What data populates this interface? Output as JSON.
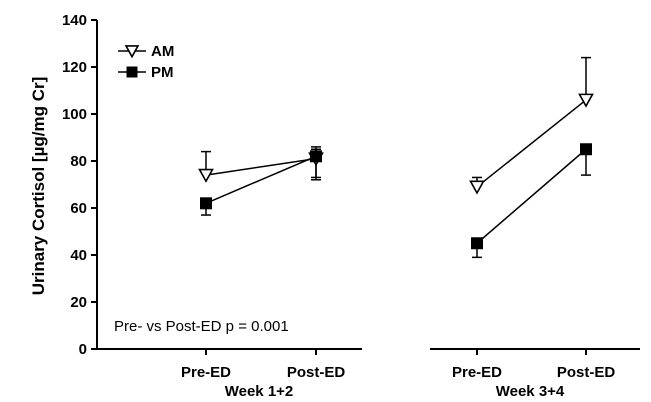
{
  "chart_data": {
    "type": "line",
    "ylabel": "Urinary Cortisol [µg/mg Cr]",
    "ylim": [
      0,
      140
    ],
    "yticks": [
      "0",
      "20",
      "40",
      "60",
      "80",
      "100",
      "120",
      "140"
    ],
    "categories": [
      "Pre-ED",
      "Post-ED",
      "Pre-ED",
      "Post-ED"
    ],
    "groups": [
      "Week 1+2",
      "Week 3+4"
    ],
    "series": [
      {
        "name": "AM",
        "marker": "open-triangle-down",
        "values": [
          74,
          81,
          69,
          106
        ],
        "error_upper": [
          84,
          85,
          73,
          124
        ],
        "error_lower": [
          null,
          73,
          null,
          null
        ]
      },
      {
        "name": "PM",
        "marker": "filled-square",
        "values": [
          62,
          82,
          45,
          85
        ],
        "error_upper": [
          null,
          86,
          null,
          null
        ],
        "error_lower": [
          57,
          72,
          39,
          74
        ]
      }
    ],
    "annotation": "Pre- vs Post-ED p = 0.001",
    "legend_position": "top-left",
    "grid": false,
    "colors": {
      "line": "#000000",
      "background": "#ffffff"
    }
  }
}
